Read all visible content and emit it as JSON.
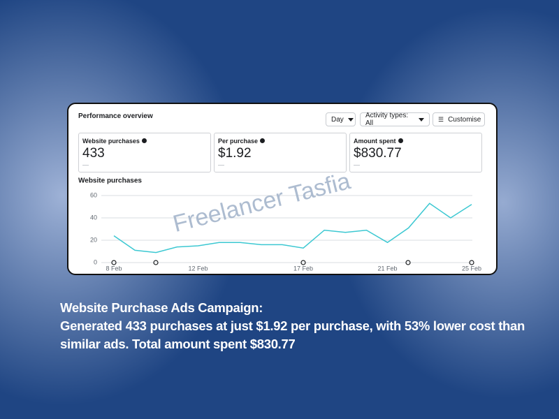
{
  "header": {
    "title": "Performance overview",
    "controls": [
      "Day",
      "Activity types: All",
      "Customise"
    ]
  },
  "metrics": [
    {
      "label": "Website purchases",
      "value": "433",
      "delta": "—"
    },
    {
      "label": "Per purchase",
      "value": "$1.92",
      "delta": "—"
    },
    {
      "label": "Amount spent",
      "value": "$830.77",
      "delta": "—"
    }
  ],
  "chart_data": {
    "type": "line",
    "title": "Website purchases",
    "categories": [
      "8 Feb",
      null,
      null,
      null,
      "12 Feb",
      null,
      null,
      null,
      null,
      "17 Feb",
      null,
      null,
      null,
      "21 Feb",
      null,
      null,
      null,
      "25 Feb"
    ],
    "series": [
      {
        "name": "Website purchases",
        "color": "#3cc8d2",
        "values": [
          24,
          11,
          9,
          14,
          15,
          18,
          18,
          16,
          16,
          13,
          29,
          27,
          29,
          18,
          31,
          53,
          40,
          52
        ]
      }
    ],
    "ylim": [
      0,
      60
    ],
    "yticks": [
      0,
      20,
      40,
      60
    ],
    "grid": true
  },
  "watermark": "Freelancer Tasfia",
  "caption": {
    "heading": "Website Purchase Ads Campaign:",
    "body": "Generated 433 purchases at just $1.92 per purchase, with 53% lower cost than similar ads. Total amount spent $830.77"
  }
}
